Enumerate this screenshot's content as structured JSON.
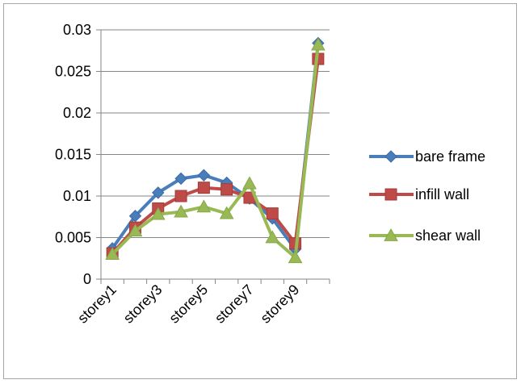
{
  "chart_data": {
    "type": "line",
    "categories": [
      "storey1",
      "storey2",
      "storey3",
      "storey4",
      "storey5",
      "storey6",
      "storey7",
      "storey8",
      "storey9",
      "storey10"
    ],
    "x_tick_labels": [
      "storey1",
      "storey3",
      "storey5",
      "storey7",
      "storey9"
    ],
    "ylim": [
      0,
      0.03
    ],
    "y_ticks": [
      0,
      0.005,
      0.01,
      0.015,
      0.02,
      0.025,
      0.03
    ],
    "y_tick_labels": [
      "0",
      "0.005",
      "0.01",
      "0.015",
      "0.02",
      "0.025",
      "0.03"
    ],
    "grid": "horizontal",
    "legend_position": "right",
    "series": [
      {
        "name": "bare frame",
        "color": "#4a7ebb",
        "marker": "diamond",
        "values": [
          0.0037,
          0.0076,
          0.0104,
          0.0121,
          0.0125,
          0.0116,
          0.0097,
          0.0073,
          0.0036,
          0.0284
        ]
      },
      {
        "name": "infill wall",
        "color": "#be4b48",
        "marker": "square",
        "values": [
          0.0031,
          0.0062,
          0.0085,
          0.01,
          0.011,
          0.0108,
          0.0098,
          0.0079,
          0.0043,
          0.0265
        ]
      },
      {
        "name": "shear wall",
        "color": "#98b954",
        "marker": "triangle",
        "values": [
          0.003,
          0.0058,
          0.0078,
          0.0081,
          0.0087,
          0.0079,
          0.0115,
          0.005,
          0.0026,
          0.0282
        ]
      }
    ]
  }
}
